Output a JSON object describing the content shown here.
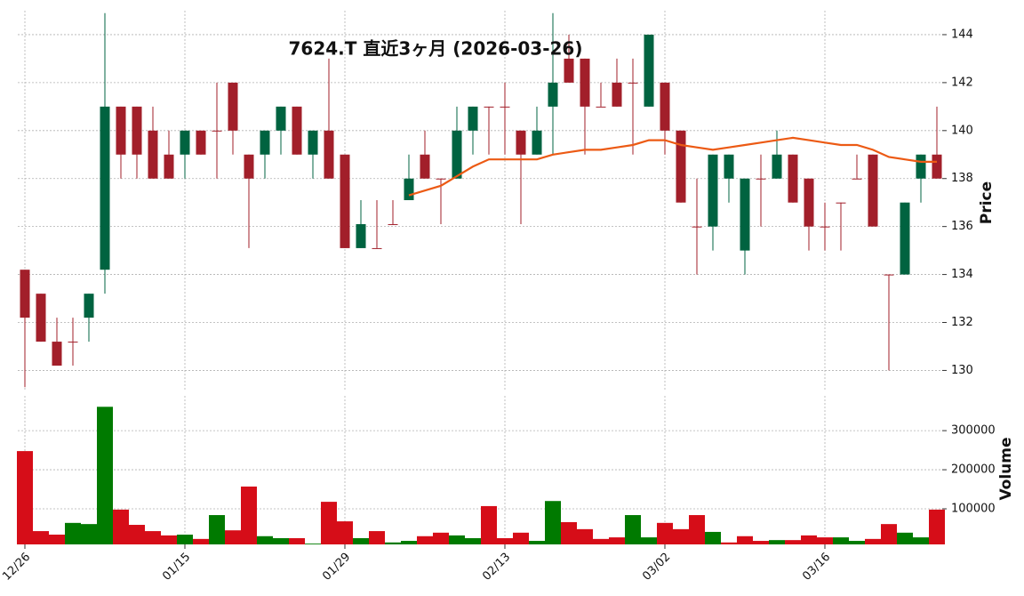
{
  "chart_data": {
    "type": "candlestick",
    "title": "7624.T  直近3ヶ月  (2026-03-26)",
    "categories": [
      "12/26",
      null,
      null,
      null,
      null,
      null,
      null,
      null,
      null,
      null,
      "01/15",
      null,
      null,
      null,
      null,
      null,
      null,
      null,
      null,
      null,
      "01/29",
      null,
      null,
      null,
      null,
      null,
      null,
      null,
      null,
      null,
      "02/13",
      null,
      null,
      null,
      null,
      null,
      null,
      null,
      null,
      null,
      "03/02",
      null,
      null,
      null,
      null,
      null,
      null,
      null,
      null,
      null,
      "03/16",
      null,
      null,
      null,
      null,
      null,
      null,
      null
    ],
    "open": [
      134.2,
      133.2,
      131.2,
      131.2,
      132.2,
      134.2,
      141,
      141,
      140,
      139,
      139,
      140,
      140,
      142,
      139,
      139,
      140,
      141,
      139,
      140,
      139,
      135.1,
      135.1,
      136.1,
      137.1,
      139,
      138,
      138,
      140,
      141,
      141,
      140,
      139,
      141,
      143,
      143,
      141,
      142,
      142,
      141,
      142,
      140,
      136,
      136,
      138,
      135,
      138,
      138,
      139,
      138,
      136,
      137,
      138,
      139,
      134,
      134,
      138,
      139
    ],
    "high": [
      134.2,
      133.2,
      132.2,
      132.2,
      133.2,
      144.9,
      141,
      141,
      141,
      140,
      140,
      140,
      142,
      142,
      139,
      140,
      141,
      141,
      140,
      143,
      139,
      137.1,
      137.1,
      137.1,
      139,
      140,
      138,
      141,
      141,
      141,
      142,
      140,
      141,
      144.9,
      144,
      143,
      142,
      143,
      143,
      144,
      142,
      140,
      138,
      139,
      139,
      138,
      139,
      140,
      139,
      138,
      137,
      137,
      139,
      139,
      134,
      137,
      139,
      141
    ],
    "low": [
      129.3,
      131.2,
      130.2,
      130.2,
      131.2,
      133.2,
      138,
      138,
      138,
      138,
      138,
      139,
      138,
      139,
      135.1,
      138,
      139,
      139,
      138,
      138,
      135.1,
      135.1,
      135.1,
      136.1,
      137.1,
      138,
      136.1,
      138,
      139,
      139,
      139,
      136.1,
      139,
      139,
      142,
      139,
      141,
      141,
      139,
      141,
      139,
      137,
      134,
      135,
      137,
      134,
      136,
      138,
      137,
      135,
      135,
      135,
      138,
      136,
      130,
      134,
      137,
      138
    ],
    "close": [
      132.2,
      131.2,
      130.2,
      131.2,
      133.2,
      141,
      139,
      139,
      138,
      138,
      140,
      139,
      140,
      140,
      138,
      140,
      141,
      139,
      140,
      138,
      135.1,
      136.1,
      135.1,
      136.1,
      138,
      138,
      138,
      140,
      141,
      141,
      141,
      139,
      140,
      142,
      142,
      141,
      141,
      141,
      142,
      144,
      140,
      137,
      136,
      139,
      139,
      138,
      138,
      139,
      137,
      136,
      136,
      137,
      138,
      136,
      134,
      137,
      139,
      138
    ],
    "ma": {
      "color": "#ec5a14",
      "values": [
        null,
        null,
        null,
        null,
        null,
        null,
        null,
        null,
        null,
        null,
        null,
        null,
        null,
        null,
        null,
        null,
        null,
        null,
        null,
        null,
        null,
        null,
        null,
        null,
        137.3,
        137.5,
        137.7,
        138.1,
        138.5,
        138.8,
        138.8,
        138.8,
        138.8,
        139.0,
        139.1,
        139.2,
        139.2,
        139.3,
        139.4,
        139.6,
        139.6,
        139.4,
        139.3,
        139.2,
        139.3,
        139.4,
        139.5,
        139.6,
        139.7,
        139.6,
        139.5,
        139.4,
        139.4,
        139.2,
        138.9,
        138.8,
        138.7,
        138.7
      ]
    },
    "volume": {
      "values": [
        247700,
        43000,
        34000,
        64000,
        61000,
        361000,
        98000,
        59000,
        43000,
        32000,
        34000,
        23000,
        84000,
        45000,
        157000,
        30000,
        25000,
        25000,
        11000,
        118000,
        68000,
        25000,
        43000,
        14000,
        18000,
        30000,
        39000,
        32000,
        25000,
        107000,
        25000,
        39000,
        18000,
        120000,
        66000,
        48000,
        23000,
        27000,
        84000,
        27000,
        64000,
        48000,
        84000,
        41000,
        14000,
        30000,
        18000,
        20000,
        20000,
        32000,
        27000,
        27000,
        18000,
        23000,
        61000,
        39000,
        27000,
        98000
      ]
    },
    "ylabel": "Price",
    "ylim": [
      129.2,
      145
    ],
    "yticks": [
      130,
      132,
      134,
      136,
      138,
      140,
      142,
      144
    ],
    "volume_label": "Volume",
    "volume_ylim": [
      9000,
      389000
    ],
    "volume_yticks": [
      100000,
      200000,
      300000
    ],
    "up_color": "#006340",
    "down_color": "#a21f2a",
    "volume_up_color": "#007a00",
    "volume_down_color": "#d60d18",
    "grid": true
  }
}
